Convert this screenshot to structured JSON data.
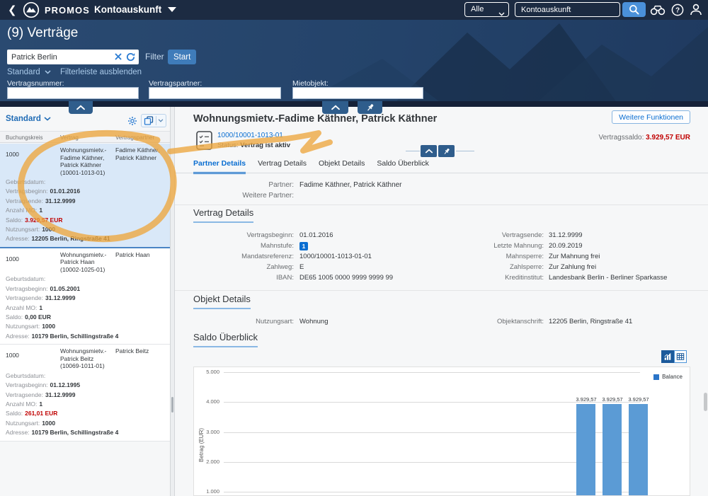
{
  "topbar": {
    "back": "❮",
    "brand": "PROMOS",
    "app_title": "Kontoauskunft",
    "scope_select": "Alle",
    "search_value": "Kontoauskunft"
  },
  "header": {
    "page_title": "(9) Verträge",
    "search_value": "Patrick Berlin",
    "filter_label": "Filter",
    "start_button": "Start",
    "variant_link": "Standard",
    "hide_filterbar_link": "Filterleiste ausblenden",
    "fields": [
      {
        "label": "Vertragsnummer:"
      },
      {
        "label": "Vertragspartner:"
      },
      {
        "label": "Mietobjekt:"
      }
    ]
  },
  "left_panel": {
    "variant": "Standard",
    "columns": [
      "Buchungskreis",
      "Vertrag",
      "Vertragspartner"
    ],
    "items": [
      {
        "buchungskreis": "1000",
        "vertrag": "Wohnungsmietv.-Fadime Käthner, Patrick Käthner (10001-1013-01)",
        "partner": "Fadime Käthner, Patrick Käthner",
        "details": [
          {
            "label": "Geburtsdatum:",
            "value": ""
          },
          {
            "label": "Vertragsbeginn:",
            "value": "01.01.2016"
          },
          {
            "label": "Vertragsende:",
            "value": "31.12.9999"
          },
          {
            "label": "Anzahl MO:",
            "value": "1"
          },
          {
            "label": "Saldo:",
            "value": "3.929,57  EUR"
          },
          {
            "label": "Nutzungsart:",
            "value": "1000"
          },
          {
            "label": "Adresse:",
            "value": "12205 Berlin, Ringstraße 41"
          }
        ]
      },
      {
        "buchungskreis": "1000",
        "vertrag": "Wohnungsmietv.-Patrick Haan (10002-1025-01)",
        "partner": "Patrick Haan",
        "details": [
          {
            "label": "Geburtsdatum:",
            "value": ""
          },
          {
            "label": "Vertragsbeginn:",
            "value": "01.05.2001"
          },
          {
            "label": "Vertragsende:",
            "value": "31.12.9999"
          },
          {
            "label": "Anzahl MO:",
            "value": "1"
          },
          {
            "label": "Saldo:",
            "value": "0,00  EUR"
          },
          {
            "label": "Nutzungsart:",
            "value": "1000"
          },
          {
            "label": "Adresse:",
            "value": "10179 Berlin, Schillingstraße 4"
          }
        ]
      },
      {
        "buchungskreis": "1000",
        "vertrag": "Wohnungsmietv.-Patrick Beitz (10069-1011-01)",
        "partner": "Patrick Beitz",
        "details": [
          {
            "label": "Geburtsdatum:",
            "value": ""
          },
          {
            "label": "Vertragsbeginn:",
            "value": "01.12.1995"
          },
          {
            "label": "Vertragsende:",
            "value": "31.12.9999"
          },
          {
            "label": "Anzahl MO:",
            "value": "1"
          },
          {
            "label": "Saldo:",
            "value": "261,01  EUR"
          },
          {
            "label": "Nutzungsart:",
            "value": "1000"
          },
          {
            "label": "Adresse:",
            "value": "10179 Berlin, Schillingstraße 4"
          }
        ]
      }
    ]
  },
  "main": {
    "more_button": "Weitere Funktionen",
    "title": "Wohnungsmietv.-Fadime Käthner, Patrick Käthner",
    "object_number": "1000/10001-1013-01",
    "status_label": "Status:",
    "status_value": "Vertrag ist aktiv",
    "saldo_label": "Vertragssaldo:",
    "saldo_value": "3.929,57 EUR",
    "tabs": [
      {
        "label": "Partner Details"
      },
      {
        "label": "Vertrag Details"
      },
      {
        "label": "Objekt Details"
      },
      {
        "label": "Saldo Überblick"
      }
    ],
    "partner_section": {
      "rows": [
        {
          "label": "Partner:",
          "value": "Fadime Käthner, Patrick Käthner"
        },
        {
          "label": "Weitere Partner:",
          "value": ""
        }
      ]
    },
    "vertrag_section": {
      "title": "Vertrag Details",
      "left_rows": [
        {
          "label": "Vertragsbeginn:",
          "value": "01.01.2016"
        },
        {
          "label": "Mahnstufe:",
          "value": "1"
        },
        {
          "label": "Mandatsreferenz:",
          "value": "1000/10001-1013-01-01"
        },
        {
          "label": "Zahlweg:",
          "value": "E"
        },
        {
          "label": "IBAN:",
          "value": "DE65 1005 0000 9999 9999 99"
        }
      ],
      "right_rows": [
        {
          "label": "Vertragsende:",
          "value": "31.12.9999"
        },
        {
          "label": "Letzte Mahnung:",
          "value": "20.09.2019"
        },
        {
          "label": "Mahnsperre:",
          "value": "Zur Mahnung frei"
        },
        {
          "label": "Zahlsperre:",
          "value": "Zur Zahlung frei"
        },
        {
          "label": "Kreditinstitut:",
          "value": "Landesbank Berlin - Berliner Sparkasse"
        }
      ]
    },
    "objekt_section": {
      "title": "Objekt Details",
      "left_rows": [
        {
          "label": "Nutzungsart:",
          "value": "Wohnung"
        }
      ],
      "right_rows": [
        {
          "label": "Objektanschrift:",
          "value": "12205 Berlin, Ringstraße 41"
        }
      ]
    },
    "saldo_section": {
      "title": "Saldo Überblick"
    }
  },
  "chart_data": {
    "type": "bar",
    "title": "Saldo Überblick",
    "ylabel": "Betrag (EUR)",
    "ylim": [
      0,
      5000
    ],
    "yticks": [
      1000,
      2000,
      3000,
      4000,
      5000
    ],
    "ytick_labels": [
      "1.000",
      "2.000",
      "3.000",
      "4.000",
      "5.000"
    ],
    "grid": true,
    "legend_position": "top-right",
    "legend": [
      {
        "label": "Balance",
        "color": "#2a74c8"
      }
    ],
    "values": [
      3929.57,
      3929.57,
      3929.57
    ],
    "bar_labels": [
      "3.929,57",
      "3.929,57",
      "3.929,57"
    ],
    "bar_color": "#5b9bd5"
  },
  "annotation": {
    "color": "#eda63e"
  }
}
